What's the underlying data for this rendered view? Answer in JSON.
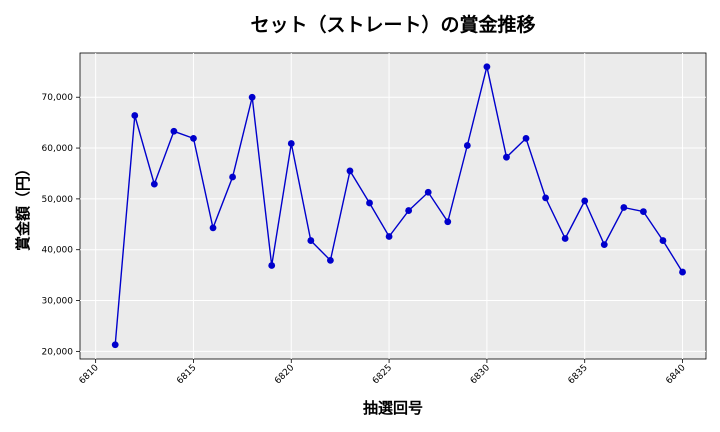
{
  "chart_data": {
    "type": "line",
    "title": "セット（ストレート）の賞金推移",
    "xlabel": "抽選回号",
    "ylabel": "賞金額（円）",
    "xlim": [
      6809.2,
      6841.2
    ],
    "ylim": [
      18500,
      78700
    ],
    "x_ticks": [
      6810,
      6815,
      6820,
      6825,
      6830,
      6835,
      6840
    ],
    "y_ticks": [
      20000,
      30000,
      40000,
      50000,
      60000,
      70000
    ],
    "y_tick_labels": [
      "20,000",
      "30,000",
      "40,000",
      "50,000",
      "60,000",
      "70,000"
    ],
    "grid": true,
    "background": "#ebebeb",
    "line_color": "#0000cc",
    "series": [
      {
        "x": [
          6811,
          6812,
          6813,
          6814,
          6815,
          6816,
          6817,
          6818,
          6819,
          6820,
          6821,
          6822,
          6823,
          6824,
          6825,
          6826,
          6827,
          6828,
          6829,
          6830,
          6831,
          6832,
          6833,
          6834,
          6835,
          6836,
          6837,
          6838,
          6839,
          6840
        ],
        "values": [
          21300,
          66400,
          52900,
          63300,
          61900,
          44300,
          54300,
          70000,
          36900,
          60900,
          41800,
          37900,
          55500,
          49200,
          42600,
          47700,
          51300,
          45500,
          60500,
          76000,
          58200,
          61900,
          50200,
          42200,
          49600,
          41000,
          48300,
          47500,
          41800,
          35600
        ]
      }
    ]
  }
}
